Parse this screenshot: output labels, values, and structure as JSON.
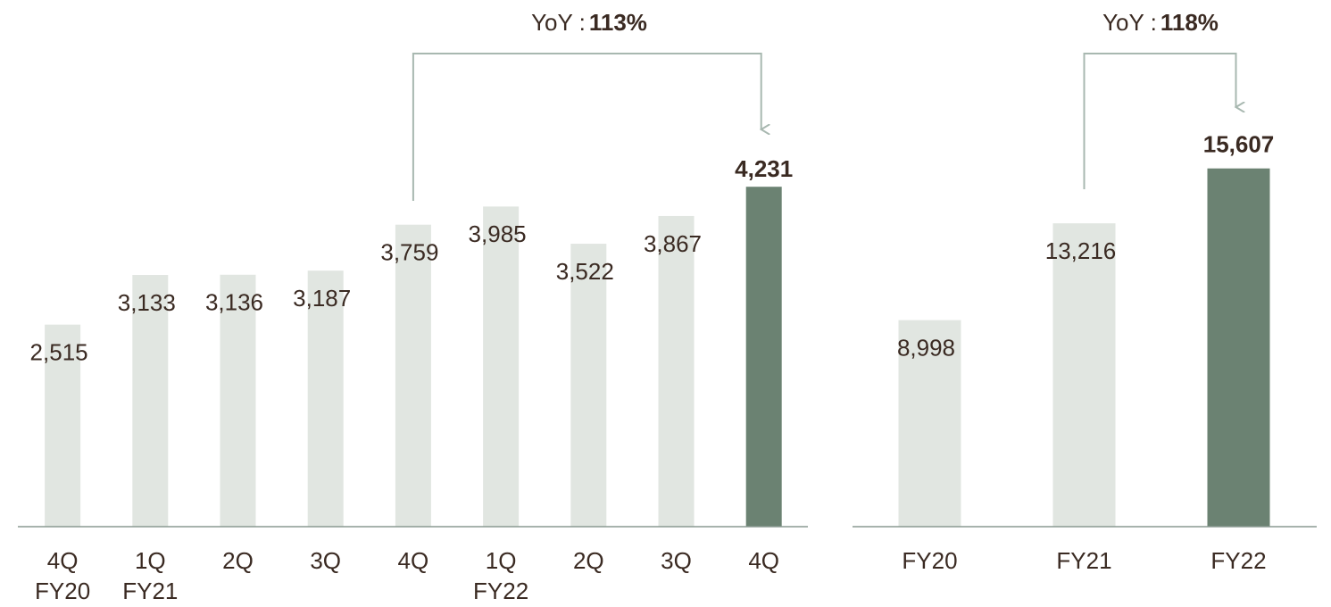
{
  "chart_data": [
    {
      "type": "bar",
      "annotation": {
        "label": "YoY :",
        "value_label": "113%"
      },
      "categories": [
        "4Q",
        "1Q",
        "2Q",
        "3Q",
        "4Q",
        "1Q",
        "2Q",
        "3Q",
        "4Q"
      ],
      "category_groups": [
        "FY20",
        "FY21",
        null,
        null,
        null,
        "FY22",
        null,
        null,
        null
      ],
      "values": [
        2515,
        3133,
        3136,
        3187,
        3759,
        3985,
        3522,
        3867,
        4231
      ],
      "value_labels": [
        "2,515",
        "3,133",
        "3,136",
        "3,187",
        "3,759",
        "3,985",
        "3,522",
        "3,867",
        "4,231"
      ],
      "colors": [
        "#e1e6e1",
        "#e1e6e1",
        "#e1e6e1",
        "#e1e6e1",
        "#e1e6e1",
        "#e1e6e1",
        "#e1e6e1",
        "#e1e6e1",
        "#6b8272"
      ],
      "ylim": [
        0,
        6000
      ]
    },
    {
      "type": "bar",
      "annotation": {
        "label": "YoY :",
        "value_label": "118%"
      },
      "categories": [
        "FY20",
        "FY21",
        "FY22"
      ],
      "values": [
        8998,
        13216,
        15607
      ],
      "value_labels": [
        "8,998",
        "13,216",
        "15,607"
      ],
      "colors": [
        "#e1e6e1",
        "#e1e6e1",
        "#6b8272"
      ],
      "ylim": [
        0,
        21000
      ]
    }
  ]
}
